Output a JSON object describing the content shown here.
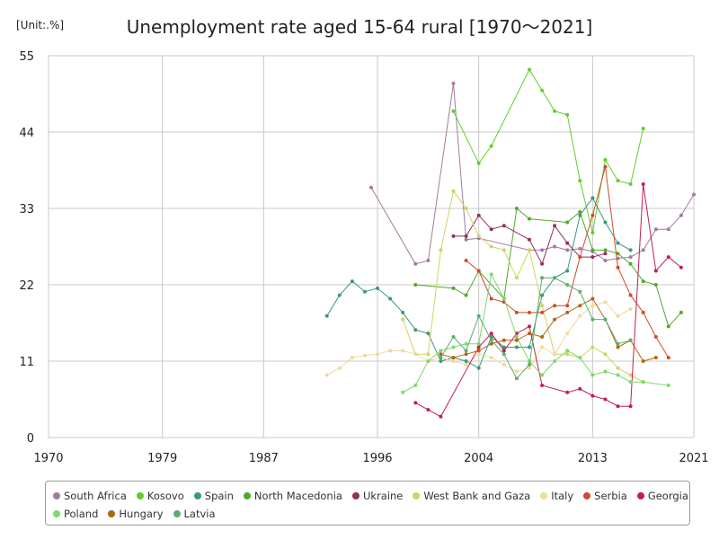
{
  "unit": "[Unit:.%]",
  "title": "Unemployment rate aged 15-64 rural [1970～2021]",
  "chart_data": {
    "type": "line",
    "title": "Unemployment rate aged 15-64 rural [1970～2021]",
    "unit": "[Unit:.%]",
    "xlim": [
      1970,
      2021
    ],
    "ylim": [
      0,
      55
    ],
    "x_ticks": [
      "1970",
      "1979",
      "1987",
      "1996",
      "2004",
      "2013",
      "2021"
    ],
    "y_ticks": [
      "0",
      "11",
      "22",
      "33",
      "44",
      "55"
    ],
    "grid": true,
    "legend_position": "bottom",
    "series": [
      {
        "name": "South Africa",
        "color": "#a27aa0",
        "points": [
          [
            1995.5,
            36
          ],
          [
            1999,
            25
          ],
          [
            2000,
            25.5
          ],
          [
            2002,
            51
          ],
          [
            2003,
            28.5
          ],
          [
            2004,
            28.7
          ],
          [
            2008,
            27
          ],
          [
            2009,
            27
          ],
          [
            2010,
            27.5
          ],
          [
            2011,
            27
          ],
          [
            2012,
            27.2
          ],
          [
            2013,
            26.8
          ],
          [
            2014,
            25.5
          ],
          [
            2015,
            25.8
          ],
          [
            2016,
            26
          ],
          [
            2017,
            27
          ],
          [
            2018,
            30
          ],
          [
            2019,
            30
          ],
          [
            2020,
            32
          ],
          [
            2021,
            35
          ]
        ]
      },
      {
        "name": "Kosovo",
        "color": "#60cf2a",
        "points": [
          [
            2002,
            47
          ],
          [
            2004,
            39.5
          ],
          [
            2005,
            42
          ],
          [
            2008,
            53
          ],
          [
            2009,
            50
          ],
          [
            2010,
            47
          ],
          [
            2011,
            46.5
          ],
          [
            2012,
            37
          ],
          [
            2013,
            29.5
          ],
          [
            2014,
            40
          ],
          [
            2015,
            37
          ],
          [
            2016,
            36.5
          ],
          [
            2017,
            44.5
          ]
        ]
      },
      {
        "name": "Spain",
        "color": "#3a9a78",
        "points": [
          [
            1992,
            17.5
          ],
          [
            1993,
            20.5
          ],
          [
            1994,
            22.5
          ],
          [
            1995,
            21
          ],
          [
            1996,
            21.5
          ],
          [
            1997,
            20
          ],
          [
            1998,
            18
          ],
          [
            1999,
            15.5
          ],
          [
            2000,
            15
          ],
          [
            2001,
            11
          ],
          [
            2002,
            11.5
          ],
          [
            2003,
            11
          ],
          [
            2004,
            10
          ],
          [
            2005,
            14.5
          ],
          [
            2006,
            13
          ],
          [
            2007,
            13
          ],
          [
            2008,
            13
          ],
          [
            2009,
            20.5
          ],
          [
            2010,
            23
          ],
          [
            2011,
            24
          ],
          [
            2012,
            32
          ],
          [
            2013,
            34.5
          ],
          [
            2014,
            31
          ],
          [
            2015,
            28
          ],
          [
            2016,
            27
          ]
        ]
      },
      {
        "name": "North Macedonia",
        "color": "#4faa2c",
        "points": [
          [
            1999,
            22
          ],
          [
            2002,
            21.5
          ],
          [
            2003,
            20.5
          ],
          [
            2004,
            24
          ],
          [
            2006,
            20
          ],
          [
            2007,
            33
          ],
          [
            2008,
            31.5
          ],
          [
            2011,
            31
          ],
          [
            2012,
            32.5
          ],
          [
            2013,
            27
          ],
          [
            2014,
            27
          ],
          [
            2015,
            26.5
          ],
          [
            2016,
            25
          ],
          [
            2017,
            22.5
          ],
          [
            2018,
            22
          ],
          [
            2019,
            16
          ],
          [
            2020,
            18
          ]
        ]
      },
      {
        "name": "Ukraine",
        "color": "#92315a",
        "points": [
          [
            2002,
            29
          ],
          [
            2003,
            29
          ],
          [
            2004,
            32
          ],
          [
            2005,
            30
          ],
          [
            2006,
            30.5
          ],
          [
            2008,
            28.5
          ],
          [
            2009,
            25
          ],
          [
            2010,
            30.5
          ],
          [
            2011,
            28
          ],
          [
            2012,
            26
          ],
          [
            2013,
            26
          ],
          [
            2014,
            26.5
          ]
        ]
      },
      {
        "name": "West Bank and Gaza",
        "color": "#cfd45e",
        "points": [
          [
            1998,
            17
          ],
          [
            1999,
            12
          ],
          [
            2000,
            12
          ],
          [
            2001,
            27
          ],
          [
            2002,
            35.5
          ],
          [
            2003,
            33
          ],
          [
            2004,
            29
          ],
          [
            2005,
            27.5
          ],
          [
            2006,
            27
          ],
          [
            2007,
            23
          ],
          [
            2008,
            27
          ],
          [
            2009,
            19
          ],
          [
            2010,
            12
          ],
          [
            2011,
            12
          ],
          [
            2012,
            11.5
          ],
          [
            2013,
            13
          ],
          [
            2014,
            12
          ],
          [
            2015,
            10
          ],
          [
            2016,
            9
          ],
          [
            2017,
            8
          ]
        ]
      },
      {
        "name": "Italy",
        "color": "#f0d8a0",
        "points": [
          [
            1992,
            9
          ],
          [
            1993,
            10
          ],
          [
            1994,
            11.5
          ],
          [
            1995,
            11.8
          ],
          [
            1996,
            12
          ],
          [
            1997,
            12.5
          ],
          [
            1998,
            12.5
          ],
          [
            1999,
            12
          ],
          [
            2000,
            11
          ],
          [
            2001,
            11.5
          ],
          [
            2002,
            11
          ],
          [
            2003,
            10.5
          ],
          [
            2004,
            12
          ],
          [
            2005,
            11.5
          ],
          [
            2006,
            10.5
          ],
          [
            2007,
            9.5
          ],
          [
            2008,
            10
          ],
          [
            2009,
            13
          ],
          [
            2010,
            12
          ],
          [
            2011,
            15
          ],
          [
            2012,
            17.5
          ],
          [
            2013,
            19
          ],
          [
            2014,
            19.5
          ],
          [
            2015,
            17.5
          ],
          [
            2016,
            18.5
          ]
        ]
      },
      {
        "name": "Serbia",
        "color": "#cf4b2a",
        "points": [
          [
            2003,
            25.5
          ],
          [
            2004,
            24
          ],
          [
            2005,
            20
          ],
          [
            2006,
            19.5
          ],
          [
            2007,
            18
          ],
          [
            2008,
            18
          ],
          [
            2009,
            18
          ],
          [
            2010,
            19
          ],
          [
            2011,
            19
          ],
          [
            2012,
            26
          ],
          [
            2013,
            32
          ],
          [
            2014,
            39
          ],
          [
            2015,
            24.5
          ],
          [
            2016,
            20.5
          ],
          [
            2017,
            18
          ],
          [
            2018,
            14.5
          ],
          [
            2019,
            11.5
          ]
        ]
      },
      {
        "name": "Georgia",
        "color": "#c41f4b",
        "points": [
          [
            1999,
            5
          ],
          [
            2000,
            4
          ],
          [
            2001,
            3
          ],
          [
            2004,
            13
          ],
          [
            2005,
            15
          ],
          [
            2006,
            12.5
          ],
          [
            2007,
            15
          ],
          [
            2008,
            16
          ],
          [
            2009,
            7.5
          ],
          [
            2011,
            6.5
          ],
          [
            2012,
            7
          ],
          [
            2013,
            6
          ],
          [
            2014,
            5.5
          ],
          [
            2015,
            4.5
          ],
          [
            2016,
            4.5
          ],
          [
            2017,
            36.5
          ],
          [
            2018,
            24
          ],
          [
            2019,
            26
          ],
          [
            2020,
            24.5
          ]
        ]
      },
      {
        "name": "Poland",
        "color": "#7fd86e",
        "points": [
          [
            1998,
            6.5
          ],
          [
            1999,
            7.5
          ],
          [
            2000,
            11
          ],
          [
            2001,
            12.5
          ],
          [
            2002,
            13
          ],
          [
            2003,
            13.5
          ],
          [
            2004,
            13.5
          ],
          [
            2005,
            23.5
          ],
          [
            2006,
            20
          ],
          [
            2007,
            14.5
          ],
          [
            2008,
            11
          ],
          [
            2009,
            9
          ],
          [
            2010,
            11
          ],
          [
            2011,
            12.5
          ],
          [
            2012,
            11.5
          ],
          [
            2013,
            9
          ],
          [
            2014,
            9.5
          ],
          [
            2015,
            9
          ],
          [
            2016,
            8
          ],
          [
            2017,
            8
          ],
          [
            2019,
            7.5
          ]
        ]
      },
      {
        "name": "Hungary",
        "color": "#b5650f",
        "points": [
          [
            2001,
            12
          ],
          [
            2002,
            11.5
          ],
          [
            2003,
            12
          ],
          [
            2004,
            12.5
          ],
          [
            2005,
            13.5
          ],
          [
            2006,
            14
          ],
          [
            2007,
            14
          ],
          [
            2008,
            15
          ],
          [
            2009,
            14.5
          ],
          [
            2010,
            17
          ],
          [
            2011,
            18
          ],
          [
            2012,
            19
          ],
          [
            2013,
            20
          ],
          [
            2014,
            17
          ],
          [
            2015,
            13
          ],
          [
            2016,
            14
          ],
          [
            2017,
            11
          ],
          [
            2018,
            11.5
          ]
        ]
      },
      {
        "name": "Latvia",
        "color": "#5cae6e",
        "points": [
          [
            2001,
            11.5
          ],
          [
            2002,
            14.5
          ],
          [
            2003,
            12.5
          ],
          [
            2004,
            17.5
          ],
          [
            2005,
            14
          ],
          [
            2006,
            12
          ],
          [
            2007,
            8.5
          ],
          [
            2008,
            10.5
          ],
          [
            2009,
            23
          ],
          [
            2010,
            23
          ],
          [
            2011,
            22
          ],
          [
            2012,
            21
          ],
          [
            2013,
            17
          ],
          [
            2014,
            17
          ],
          [
            2015,
            13.5
          ],
          [
            2016,
            14
          ]
        ]
      }
    ]
  }
}
